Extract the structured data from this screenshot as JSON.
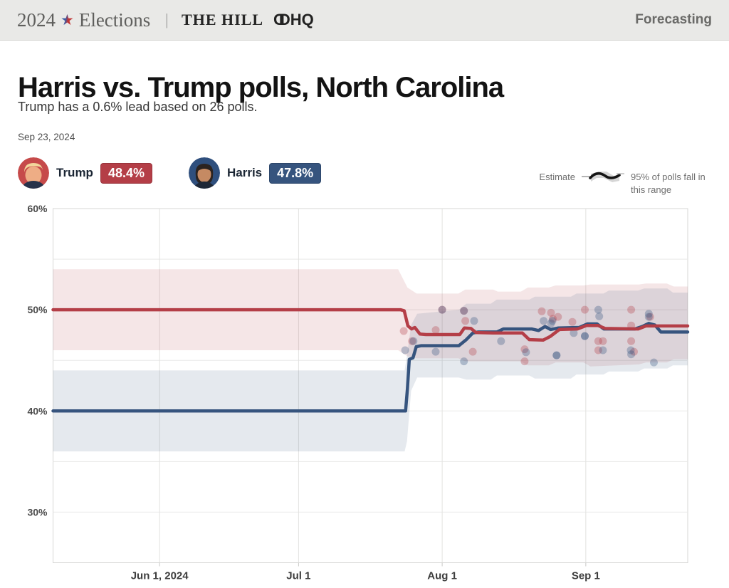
{
  "header": {
    "brand_year": "2024",
    "brand_name": "Elections",
    "divider": "|",
    "partner": "THE HILL",
    "ddhq_d1": "D",
    "ddhq_d2": "D",
    "ddhq_hq": "HQ",
    "nav_right": "Forecasting"
  },
  "title": "Harris vs. Trump polls, North Carolina",
  "subtitle": "Trump has a 0.6% lead based on 26 polls.",
  "date": "Sep 23, 2024",
  "candidates": [
    {
      "name": "Trump",
      "value": "48.4%",
      "color": "#b43e47"
    },
    {
      "name": "Harris",
      "value": "47.8%",
      "color": "#36547e"
    }
  ],
  "legend": {
    "estimate_label": "Estimate",
    "range_label": "95% of polls fall in this range"
  },
  "chart_data": {
    "type": "line",
    "title": "Harris vs. Trump polling averages, North Carolina",
    "poll_count": 26,
    "lead": {
      "candidate": "Trump",
      "margin_pct": 0.6
    },
    "latest": {
      "Trump": 48.4,
      "Harris": 47.8
    },
    "x_axis": {
      "unit": "days since 2024-05-09",
      "range": [
        0,
        137
      ],
      "ticks": [
        {
          "d": 23,
          "label": "Jun 1, 2024"
        },
        {
          "d": 53,
          "label": "Jul 1"
        },
        {
          "d": 84,
          "label": "Aug 1"
        },
        {
          "d": 115,
          "label": "Sep 1"
        }
      ]
    },
    "y_axis": {
      "unit": "percent",
      "range": [
        25,
        60
      ],
      "gridlines": [
        55,
        50,
        45,
        40,
        35,
        30
      ],
      "ticks": [
        {
          "v": 60,
          "label": "60%"
        },
        {
          "v": 50,
          "label": "50%"
        },
        {
          "v": 40,
          "label": "40%"
        },
        {
          "v": 30,
          "label": "30%"
        }
      ]
    },
    "series": [
      {
        "name": "Trump",
        "color": "#b43e47",
        "points": [
          [
            0,
            50
          ],
          [
            75,
            50
          ],
          [
            75.8,
            49.9
          ],
          [
            76.6,
            48.4
          ],
          [
            77.4,
            48.1
          ],
          [
            78.1,
            48.25
          ],
          [
            79.2,
            47.6
          ],
          [
            80.5,
            47.55
          ],
          [
            87.8,
            47.55
          ],
          [
            88.8,
            48.2
          ],
          [
            90.2,
            48.15
          ],
          [
            91.3,
            47.75
          ],
          [
            95,
            47.7
          ],
          [
            101.3,
            47.7
          ],
          [
            102.8,
            47.05
          ],
          [
            105.8,
            47.0
          ],
          [
            107.3,
            47.35
          ],
          [
            109.3,
            48.05
          ],
          [
            113.2,
            48.1
          ],
          [
            115.2,
            48.45
          ],
          [
            117.6,
            48.45
          ],
          [
            119.2,
            48.15
          ],
          [
            126.3,
            48.1
          ],
          [
            128,
            48.4
          ],
          [
            137,
            48.4
          ]
        ],
        "band": [
          [
            0,
            46,
            54
          ],
          [
            74.5,
            46,
            54
          ],
          [
            76.5,
            45.4,
            52.2
          ],
          [
            78.5,
            45.2,
            51.6
          ],
          [
            87.5,
            45.2,
            51.6
          ],
          [
            89,
            44.9,
            52.0
          ],
          [
            95,
            44.9,
            52.0
          ],
          [
            96,
            44.9,
            51.8
          ],
          [
            101,
            44.9,
            51.8
          ],
          [
            102.5,
            44.5,
            52.2
          ],
          [
            107,
            44.5,
            52.2
          ],
          [
            108.5,
            44.8,
            52.4
          ],
          [
            114.5,
            44.8,
            52.4
          ],
          [
            116,
            44.4,
            52.5
          ],
          [
            126.5,
            44.6,
            52.5
          ],
          [
            128,
            44.8,
            52.6
          ],
          [
            132.5,
            44.8,
            52.6
          ],
          [
            134,
            45.1,
            52.3
          ],
          [
            137,
            45.1,
            52.3
          ]
        ]
      },
      {
        "name": "Harris",
        "color": "#36547e",
        "points": [
          [
            0,
            40
          ],
          [
            76.1,
            40
          ],
          [
            76.5,
            42.2
          ],
          [
            76.9,
            45.1
          ],
          [
            77.7,
            45.25
          ],
          [
            78.4,
            46.35
          ],
          [
            79.5,
            46.45
          ],
          [
            87.6,
            46.45
          ],
          [
            89.2,
            47.05
          ],
          [
            90.6,
            47.7
          ],
          [
            91.8,
            47.8
          ],
          [
            95.8,
            47.8
          ],
          [
            97.2,
            48.1
          ],
          [
            103.3,
            48.1
          ],
          [
            104.8,
            47.95
          ],
          [
            106.2,
            48.35
          ],
          [
            107.4,
            48.05
          ],
          [
            109.1,
            48.2
          ],
          [
            113.6,
            48.25
          ],
          [
            115.4,
            48.6
          ],
          [
            117.4,
            48.6
          ],
          [
            118.9,
            48.1
          ],
          [
            125.6,
            48.1
          ],
          [
            127.2,
            48.35
          ],
          [
            128.6,
            48.65
          ],
          [
            129.9,
            48.5
          ],
          [
            131.2,
            47.8
          ],
          [
            137,
            47.8
          ]
        ],
        "band": [
          [
            0,
            36,
            44
          ],
          [
            75.9,
            36,
            44
          ],
          [
            76.4,
            37,
            45.5
          ],
          [
            77.3,
            42.0,
            48.5
          ],
          [
            78.6,
            43.3,
            49.6
          ],
          [
            87.6,
            43.3,
            50.0
          ],
          [
            89.2,
            43.1,
            50.6
          ],
          [
            94.5,
            43.1,
            50.6
          ],
          [
            95.8,
            43.5,
            51.0
          ],
          [
            102.8,
            43.5,
            51.0
          ],
          [
            104,
            43.2,
            51.3
          ],
          [
            111.8,
            43.2,
            51.3
          ],
          [
            113,
            43.6,
            51.6
          ],
          [
            118.8,
            43.6,
            51.6
          ],
          [
            120,
            43.9,
            51.9
          ],
          [
            126.3,
            43.9,
            51.9
          ],
          [
            127.6,
            44.2,
            52.1
          ],
          [
            132.6,
            44.2,
            52.1
          ],
          [
            133.8,
            44.5,
            51.7
          ],
          [
            137,
            44.5,
            51.7
          ]
        ]
      }
    ],
    "polls": {
      "trump": [
        [
          75.7,
          47.9
        ],
        [
          77.5,
          46.9
        ],
        [
          82.6,
          48.0
        ],
        [
          84,
          50.0
        ],
        [
          88.7,
          49.9
        ],
        [
          89,
          48.9
        ],
        [
          90.6,
          45.85
        ],
        [
          101.8,
          46.1
        ],
        [
          101.8,
          44.9
        ],
        [
          105.5,
          49.85
        ],
        [
          107.5,
          49.7
        ],
        [
          107.9,
          49.1
        ],
        [
          109,
          49.3
        ],
        [
          112.1,
          48.8
        ],
        [
          114.8,
          50.0
        ],
        [
          117.7,
          46.9
        ],
        [
          118.7,
          46.9
        ],
        [
          117.7,
          46.0
        ],
        [
          124.8,
          50.0
        ],
        [
          124.8,
          48.45
        ],
        [
          124.8,
          46.9
        ],
        [
          125.4,
          45.85
        ],
        [
          128.9,
          49.3
        ]
      ],
      "harris": [
        [
          76,
          46.0
        ],
        [
          77.8,
          46.9
        ],
        [
          82.6,
          45.85
        ],
        [
          84,
          50.0
        ],
        [
          88.7,
          49.9
        ],
        [
          88.7,
          44.9
        ],
        [
          90.9,
          48.9
        ],
        [
          96.7,
          46.9
        ],
        [
          102.1,
          45.8
        ],
        [
          105.9,
          48.9
        ],
        [
          107.5,
          48.65
        ],
        [
          107.8,
          48.9
        ],
        [
          108.7,
          45.5
        ],
        [
          108.7,
          45.5
        ],
        [
          112.4,
          47.7
        ],
        [
          114.8,
          47.4
        ],
        [
          114.8,
          47.4
        ],
        [
          117.7,
          50.0
        ],
        [
          117.9,
          49.35
        ],
        [
          118.7,
          46.0
        ],
        [
          124.7,
          46.0
        ],
        [
          124.8,
          45.6
        ],
        [
          128.6,
          49.6
        ],
        [
          128.6,
          49.3
        ],
        [
          129.7,
          44.8
        ]
      ]
    }
  }
}
